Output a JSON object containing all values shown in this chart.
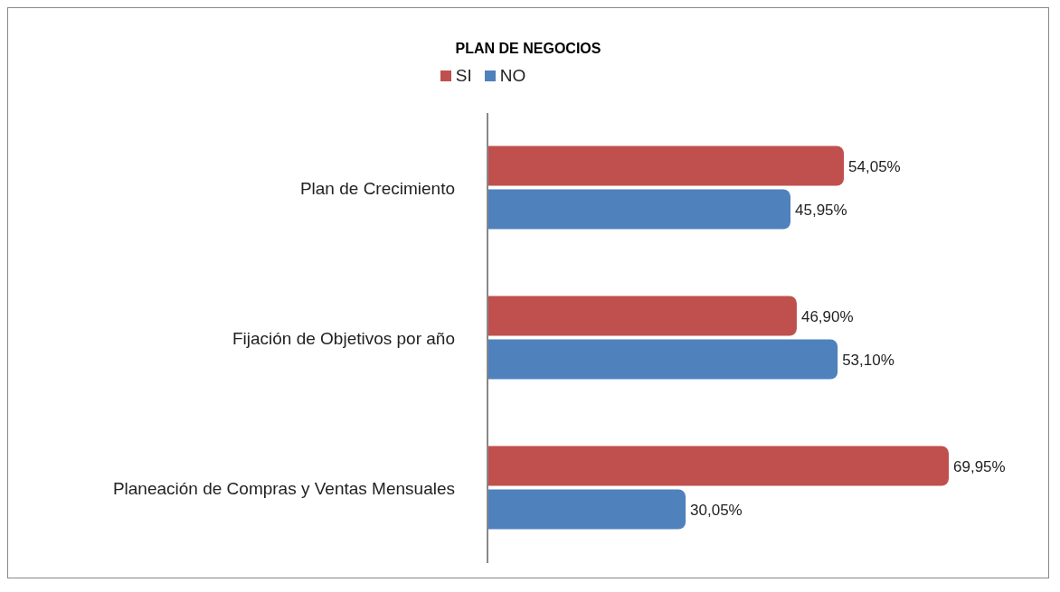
{
  "chart_data": {
    "type": "bar",
    "orientation": "horizontal",
    "title": "PLAN DE NEGOCIOS",
    "categories": [
      "Plan de Crecimiento",
      "Fijación de Objetivos por año",
      "Planeación de Compras y Ventas Mensuales"
    ],
    "series": [
      {
        "name": "SI",
        "color": "#c0504d",
        "values": [
          54.05,
          46.9,
          69.95
        ],
        "value_labels": [
          "54,05%",
          "46,90%",
          "69,95%"
        ]
      },
      {
        "name": "NO",
        "color": "#4f81bd",
        "values": [
          45.95,
          53.1,
          30.05
        ],
        "value_labels": [
          "45,95%",
          "53,10%",
          "30,05%"
        ]
      }
    ],
    "legend": "top",
    "grid": false
  }
}
